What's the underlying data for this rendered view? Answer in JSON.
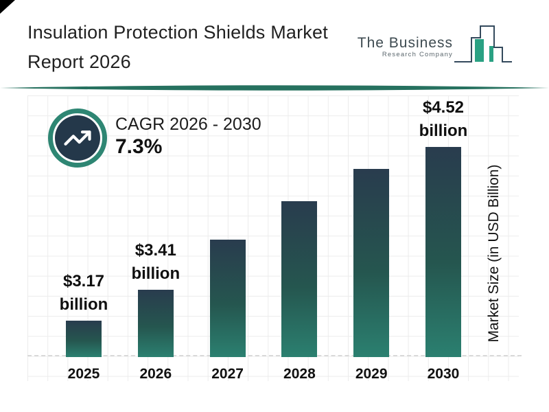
{
  "header": {
    "title": "Insulation Protection Shields Market Report 2026",
    "logo": {
      "line1": "The Business",
      "line2": "Research Company"
    }
  },
  "cagr": {
    "label": "CAGR 2026 - 2030",
    "value": "7.3%",
    "icon": "trend-up-icon"
  },
  "chart_data": {
    "type": "bar",
    "title": "Insulation Protection Shields Market Report 2026",
    "categories": [
      "2025",
      "2026",
      "2027",
      "2028",
      "2029",
      "2030"
    ],
    "values": [
      3.17,
      3.41,
      3.8,
      4.1,
      4.35,
      4.52
    ],
    "bar_labels": [
      "$3.17 billion",
      "$3.41 billion",
      null,
      null,
      null,
      "$4.52 billion"
    ],
    "xlabel": "",
    "ylabel": "Market Size (in USD Billion)",
    "ylim": [
      2.89,
      4.6
    ],
    "grid": true,
    "legend": "none"
  },
  "colors": {
    "bar_gradient_top": "#293c4e",
    "bar_gradient_bottom": "#2b8070",
    "divider_teal": "#26715f",
    "badge_ring": "#2e8673",
    "badge_fill": "#24384a",
    "logo_outline": "#33495c",
    "logo_fill": "#2aa183",
    "grid_line": "#ececec",
    "text_dark": "#111111"
  }
}
